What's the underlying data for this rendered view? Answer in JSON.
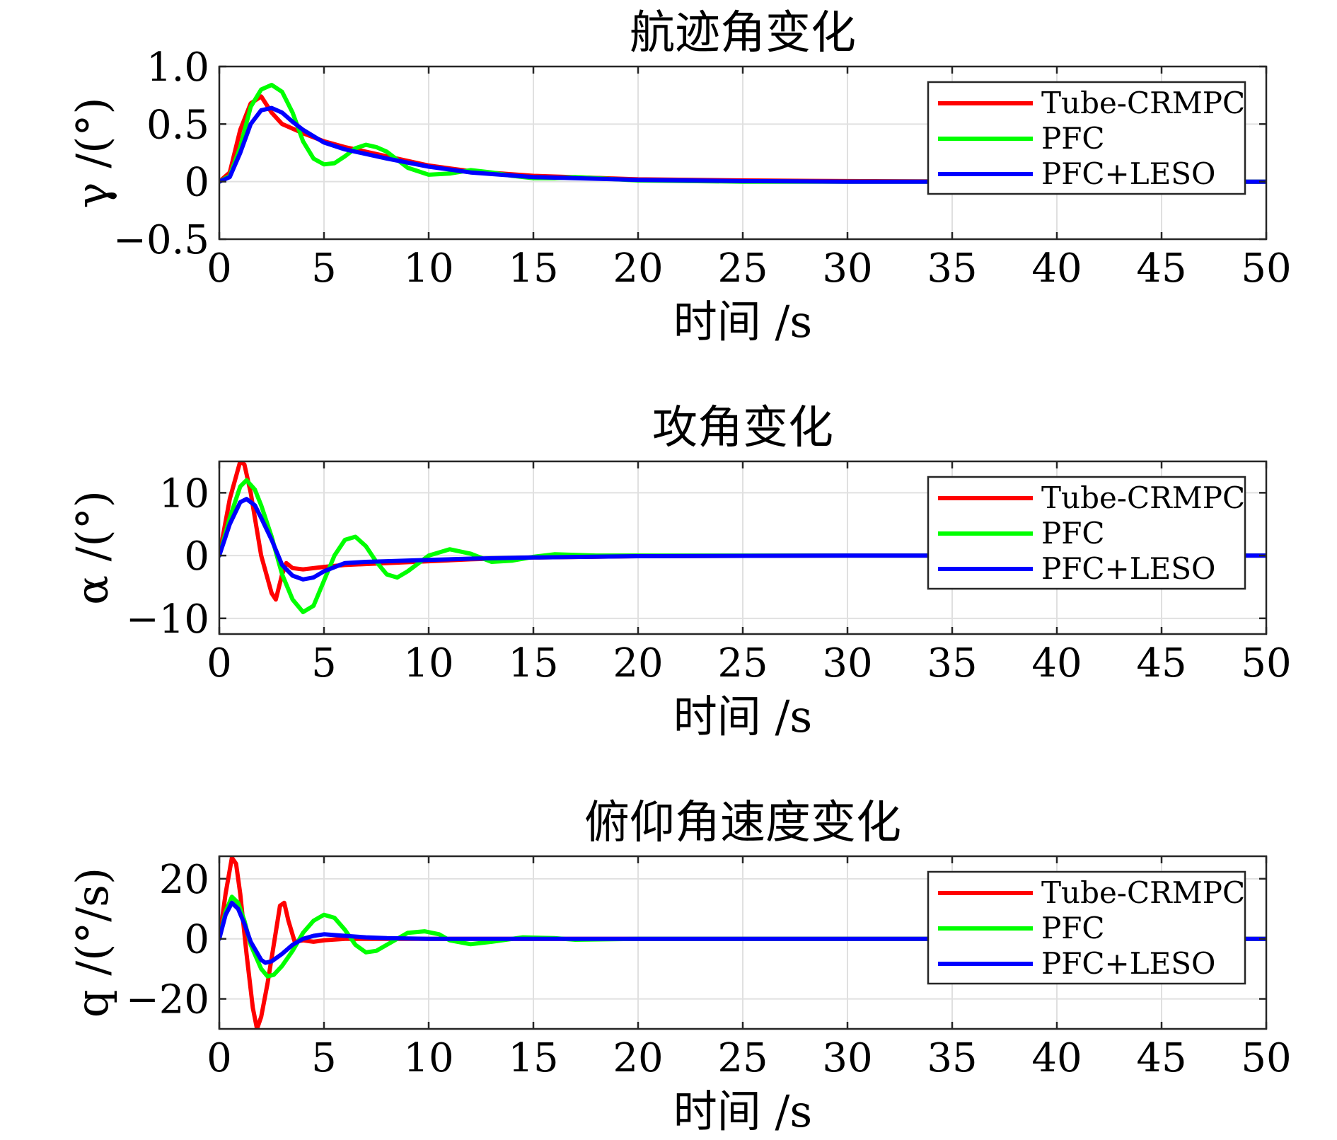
{
  "chart_data": [
    {
      "type": "line",
      "title": "航迹角变化",
      "xlabel": "时间 /s",
      "ylabel": "γ /(°)",
      "xlim": [
        0,
        50
      ],
      "ylim": [
        -0.5,
        1.0
      ],
      "xticks": [
        0,
        5,
        10,
        15,
        20,
        25,
        30,
        35,
        40,
        45,
        50
      ],
      "xtick_labels": [
        "0",
        "5",
        "10",
        "15",
        "20",
        "25",
        "30",
        "35",
        "40",
        "45",
        "50"
      ],
      "yticks": [
        -0.5,
        0,
        0.5,
        1.0
      ],
      "ytick_labels": [
        "−0.5",
        "0",
        "0.5",
        "1.0"
      ],
      "grid": true,
      "legend_position": "top-right",
      "series": [
        {
          "name": "Tube-CRMPC",
          "color": "#ff0000",
          "x": [
            0,
            0.5,
            1,
            1.5,
            2,
            2.5,
            3,
            4,
            5,
            6,
            8,
            10,
            12,
            15,
            20,
            25,
            30,
            40,
            50
          ],
          "y": [
            0,
            0.08,
            0.45,
            0.68,
            0.74,
            0.6,
            0.5,
            0.42,
            0.35,
            0.3,
            0.22,
            0.14,
            0.09,
            0.05,
            0.02,
            0.01,
            0.005,
            0,
            0
          ]
        },
        {
          "name": "PFC",
          "color": "#00ff00",
          "x": [
            0,
            0.5,
            1,
            1.5,
            2,
            2.5,
            3,
            3.5,
            4,
            4.5,
            5,
            5.5,
            6,
            6.5,
            7,
            7.5,
            8,
            9,
            10,
            11,
            12,
            13,
            14,
            15,
            16,
            17,
            18,
            20,
            25,
            30,
            40,
            50
          ],
          "y": [
            0,
            0.05,
            0.3,
            0.65,
            0.8,
            0.84,
            0.78,
            0.6,
            0.35,
            0.2,
            0.15,
            0.16,
            0.22,
            0.29,
            0.32,
            0.3,
            0.26,
            0.12,
            0.06,
            0.07,
            0.1,
            0.08,
            0.05,
            0.03,
            0.03,
            0.04,
            0.03,
            0.01,
            0,
            0,
            0,
            0
          ]
        },
        {
          "name": "PFC+LESO",
          "color": "#0000ff",
          "x": [
            0,
            0.5,
            1,
            1.5,
            2,
            2.5,
            3,
            3.5,
            4,
            5,
            6,
            7,
            8,
            10,
            12,
            15,
            20,
            25,
            30,
            40,
            50
          ],
          "y": [
            0,
            0.04,
            0.25,
            0.5,
            0.62,
            0.64,
            0.6,
            0.52,
            0.45,
            0.34,
            0.28,
            0.24,
            0.2,
            0.13,
            0.08,
            0.04,
            0.015,
            0.005,
            0,
            0,
            0
          ]
        }
      ]
    },
    {
      "type": "line",
      "title": "攻角变化",
      "xlabel": "时间 /s",
      "ylabel": "α /(°)",
      "xlim": [
        0,
        50
      ],
      "ylim": [
        -12.5,
        15
      ],
      "xticks": [
        0,
        5,
        10,
        15,
        20,
        25,
        30,
        35,
        40,
        45,
        50
      ],
      "xtick_labels": [
        "0",
        "5",
        "10",
        "15",
        "20",
        "25",
        "30",
        "35",
        "40",
        "45",
        "50"
      ],
      "yticks": [
        -10,
        0,
        10
      ],
      "ytick_labels": [
        "−10",
        "0",
        "10"
      ],
      "grid": true,
      "legend_position": "top-right",
      "series": [
        {
          "name": "Tube-CRMPC",
          "color": "#ff0000",
          "x": [
            0,
            0.5,
            1,
            1.2,
            1.5,
            2,
            2.5,
            2.7,
            3,
            3.2,
            3.5,
            4,
            5,
            6,
            8,
            10,
            12,
            15,
            20,
            30,
            40,
            50
          ],
          "y": [
            0,
            9,
            15,
            14.5,
            10,
            0,
            -6,
            -7,
            -3,
            -1.2,
            -2,
            -2.2,
            -1.8,
            -1.5,
            -1.2,
            -0.9,
            -0.6,
            -0.3,
            -0.1,
            0,
            0,
            0
          ]
        },
        {
          "name": "PFC",
          "color": "#00ff00",
          "x": [
            0,
            0.5,
            1,
            1.3,
            1.7,
            2,
            2.5,
            3,
            3.5,
            4,
            4.5,
            5,
            5.5,
            6,
            6.5,
            7,
            7.5,
            8,
            8.5,
            9,
            10,
            11,
            12,
            13,
            14,
            15,
            16,
            18,
            20,
            25,
            30,
            50
          ],
          "y": [
            0,
            6,
            11,
            12,
            10.5,
            8,
            3,
            -3,
            -7,
            -9,
            -8,
            -4,
            0,
            2.5,
            3,
            1.5,
            -1,
            -3,
            -3.5,
            -2.5,
            0,
            1,
            0.3,
            -1,
            -0.8,
            -0.2,
            0.2,
            0,
            0,
            0,
            0,
            0
          ]
        },
        {
          "name": "PFC+LESO",
          "color": "#0000ff",
          "x": [
            0,
            0.5,
            1,
            1.3,
            1.7,
            2,
            2.5,
            3,
            3.5,
            4,
            4.5,
            5,
            6,
            7,
            8,
            10,
            12,
            15,
            20,
            30,
            50
          ],
          "y": [
            0,
            5,
            8.5,
            9,
            8,
            6,
            2.5,
            -1.5,
            -3.2,
            -3.8,
            -3.5,
            -2.5,
            -1.2,
            -1,
            -0.9,
            -0.7,
            -0.5,
            -0.3,
            -0.1,
            0,
            0
          ]
        }
      ]
    },
    {
      "type": "line",
      "title": "俯仰角速度变化",
      "xlabel": "时间 /s",
      "ylabel": "q /(°/s)",
      "xlim": [
        0,
        50
      ],
      "ylim": [
        -30,
        27.5
      ],
      "xticks": [
        0,
        5,
        10,
        15,
        20,
        25,
        30,
        35,
        40,
        45,
        50
      ],
      "xtick_labels": [
        "0",
        "5",
        "10",
        "15",
        "20",
        "25",
        "30",
        "35",
        "40",
        "45",
        "50"
      ],
      "yticks": [
        -20,
        0,
        20
      ],
      "ytick_labels": [
        "−20",
        "0",
        "20"
      ],
      "grid": true,
      "legend_position": "top-right",
      "series": [
        {
          "name": "Tube-CRMPC",
          "color": "#ff0000",
          "x": [
            0,
            0.3,
            0.6,
            0.8,
            1,
            1.3,
            1.6,
            1.8,
            2,
            2.3,
            2.6,
            2.9,
            3.1,
            3.3,
            3.6,
            4,
            4.5,
            5,
            6,
            8,
            10,
            15,
            20,
            50
          ],
          "y": [
            0,
            15,
            27,
            25,
            15,
            -5,
            -23,
            -30,
            -26,
            -15,
            -2,
            11,
            12,
            6,
            -1,
            -0.5,
            -1,
            -0.5,
            0,
            0,
            0,
            0,
            0,
            0
          ]
        },
        {
          "name": "PFC",
          "color": "#00ff00",
          "x": [
            0,
            0.3,
            0.6,
            0.9,
            1.2,
            1.5,
            2,
            2.3,
            2.6,
            3,
            3.5,
            4,
            4.5,
            5,
            5.5,
            6,
            6.5,
            7,
            7.5,
            8,
            9,
            9.8,
            10.5,
            11,
            12,
            13,
            14.5,
            16,
            17,
            20,
            25,
            50
          ],
          "y": [
            0,
            9,
            14,
            12,
            6,
            -2,
            -10,
            -12.5,
            -12,
            -9,
            -4,
            2,
            6,
            8,
            7,
            3,
            -2,
            -4.5,
            -4,
            -2,
            2,
            2.5,
            1.5,
            -0.5,
            -1.8,
            -1,
            0.5,
            0.2,
            -0.3,
            0,
            0,
            0
          ]
        },
        {
          "name": "PFC+LESO",
          "color": "#0000ff",
          "x": [
            0,
            0.3,
            0.6,
            0.9,
            1.2,
            1.5,
            2,
            2.2,
            2.5,
            3,
            3.5,
            4,
            4.5,
            5,
            6,
            7,
            8,
            10,
            15,
            20,
            50
          ],
          "y": [
            0,
            8,
            12,
            10,
            5,
            -1,
            -7,
            -8,
            -7.5,
            -5,
            -2,
            0,
            1,
            1.5,
            1,
            0.5,
            0.2,
            0,
            0,
            0,
            0
          ]
        }
      ]
    }
  ]
}
